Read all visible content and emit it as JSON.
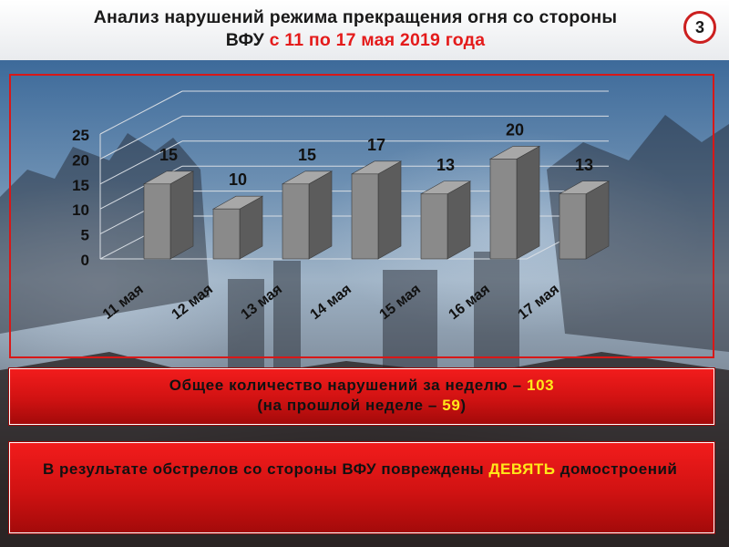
{
  "header": {
    "title_line1": "Анализ нарушений режима прекращения огня со стороны",
    "title_line2_prefix": "ВФУ",
    "title_line2_highlight": "с 11 по 17 мая 2019 года",
    "slide_number": "3"
  },
  "chart_data": {
    "type": "bar",
    "categories": [
      "11 мая",
      "12 мая",
      "13 мая",
      "14 мая",
      "15 мая",
      "16 мая",
      "17 мая"
    ],
    "values": [
      15,
      10,
      15,
      17,
      13,
      20,
      13
    ],
    "y_ticks": [
      "0",
      "5",
      "10",
      "15",
      "20",
      "25"
    ],
    "ylim": [
      0,
      25
    ],
    "grid": true,
    "legend": "none",
    "colors": {
      "bar_front": "#8a8a8a",
      "bar_side": "#5c5c5c",
      "bar_top": "#a8a8a8",
      "labels": "#111111"
    }
  },
  "totals": {
    "line1_text": "Общее количество нарушений за неделю – ",
    "line1_value": "103",
    "line2_open": "(на прошлой неделе – ",
    "line2_value": "59",
    "line2_close": ")"
  },
  "damage": {
    "text": "В результате обстрелов со стороны ВФУ повреждены ",
    "highlight": "ДЕВЯТЬ",
    "tail": " домостроений"
  },
  "colors": {
    "accent_red": "#e41b1b",
    "highlight_yellow": "#ffe81a"
  }
}
